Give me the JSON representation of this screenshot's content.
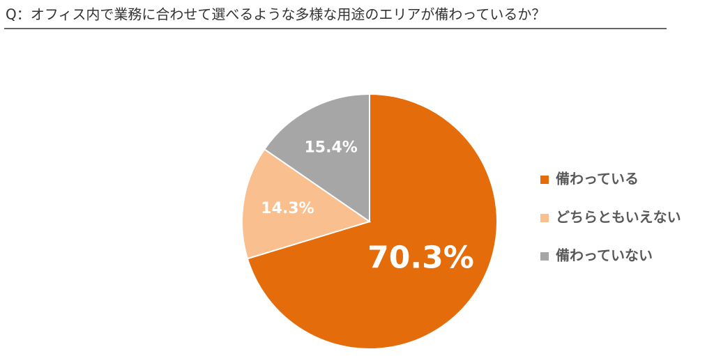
{
  "chart_data": {
    "type": "pie",
    "title": "Q：オフィス内で業務に合わせて選べるような多様な用途のエリアが備わっているか？",
    "categories": [
      "備わっている",
      "どちらともいえない",
      "備わっていない"
    ],
    "values": [
      70.3,
      14.3,
      15.4
    ],
    "value_labels": [
      "70.3%",
      "14.3%",
      "15.4%"
    ],
    "colors": [
      "#e46c0a",
      "#f9bf8f",
      "#a6a6a6"
    ],
    "legend": "right"
  }
}
